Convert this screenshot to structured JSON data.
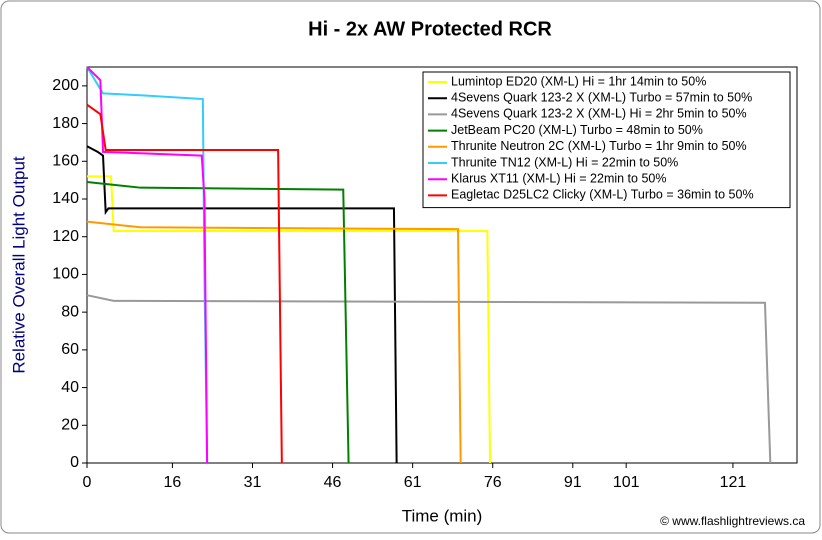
{
  "chart_data": {
    "type": "line",
    "title": "Hi - 2x AW Protected RCR",
    "x_label": "Time (min)",
    "y_label": "Relative Overall Light Output",
    "credit": "© www.flashlightreviews.ca",
    "xlim": [
      0,
      133
    ],
    "ylim": [
      0,
      210
    ],
    "xticks": [
      0,
      16,
      31,
      46,
      61,
      76,
      91,
      101,
      121
    ],
    "yticks": [
      0,
      20,
      40,
      60,
      80,
      100,
      120,
      140,
      160,
      180,
      200
    ],
    "series": [
      {
        "name": "Lumintop ED20 (XM-L) Hi = 1hr 14min to 50%",
        "color": "#ffff00",
        "x": [
          0,
          4.5,
          5,
          10,
          75,
          75.5
        ],
        "values": [
          152,
          152,
          123,
          123,
          123,
          0
        ]
      },
      {
        "name": "4Sevens Quark 123-2 X (XM-L) Turbo = 57min to 50%",
        "color": "#000000",
        "x": [
          0,
          2,
          3,
          3.5,
          4,
          57.5,
          58
        ],
        "values": [
          168,
          165,
          163,
          133,
          135,
          135,
          0
        ]
      },
      {
        "name": "4Sevens Quark 123-2 X (XM-L) Hi = 2hr 5min to 50%",
        "color": "#999999",
        "x": [
          0,
          5,
          127,
          128
        ],
        "values": [
          89,
          86,
          85,
          0
        ]
      },
      {
        "name": "JetBeam PC20 (XM-L) Turbo = 48min to 50%",
        "color": "#008000",
        "x": [
          0,
          10,
          48,
          49
        ],
        "values": [
          149,
          146,
          145,
          0
        ]
      },
      {
        "name": "Thrunite Neutron 2C (XM-L) Turbo = 1hr 9min to 50%",
        "color": "#ff9900",
        "x": [
          0,
          10,
          69.5,
          70
        ],
        "values": [
          128,
          125,
          124,
          0
        ]
      },
      {
        "name": "Thrunite TN12 (XM-L) Hi = 22min to 50%",
        "color": "#33ccff",
        "x": [
          0,
          3,
          10,
          21.7,
          22,
          22.5
        ],
        "values": [
          210,
          196,
          195,
          193,
          100,
          0
        ]
      },
      {
        "name": "Klarus XT11 (XM-L) Hi = 22min to 50%",
        "color": "#ff00ff",
        "x": [
          0,
          2.5,
          3,
          21.5,
          22,
          22.5
        ],
        "values": [
          210,
          203,
          165,
          163,
          140,
          0
        ]
      },
      {
        "name": "Eagletac D25LC2 Clicky (XM-L) Turbo = 36min to 50%",
        "color": "#ff0000",
        "x": [
          0,
          2.5,
          3.5,
          35.8,
          36.5
        ],
        "values": [
          190,
          185,
          166,
          166,
          0
        ]
      }
    ]
  }
}
